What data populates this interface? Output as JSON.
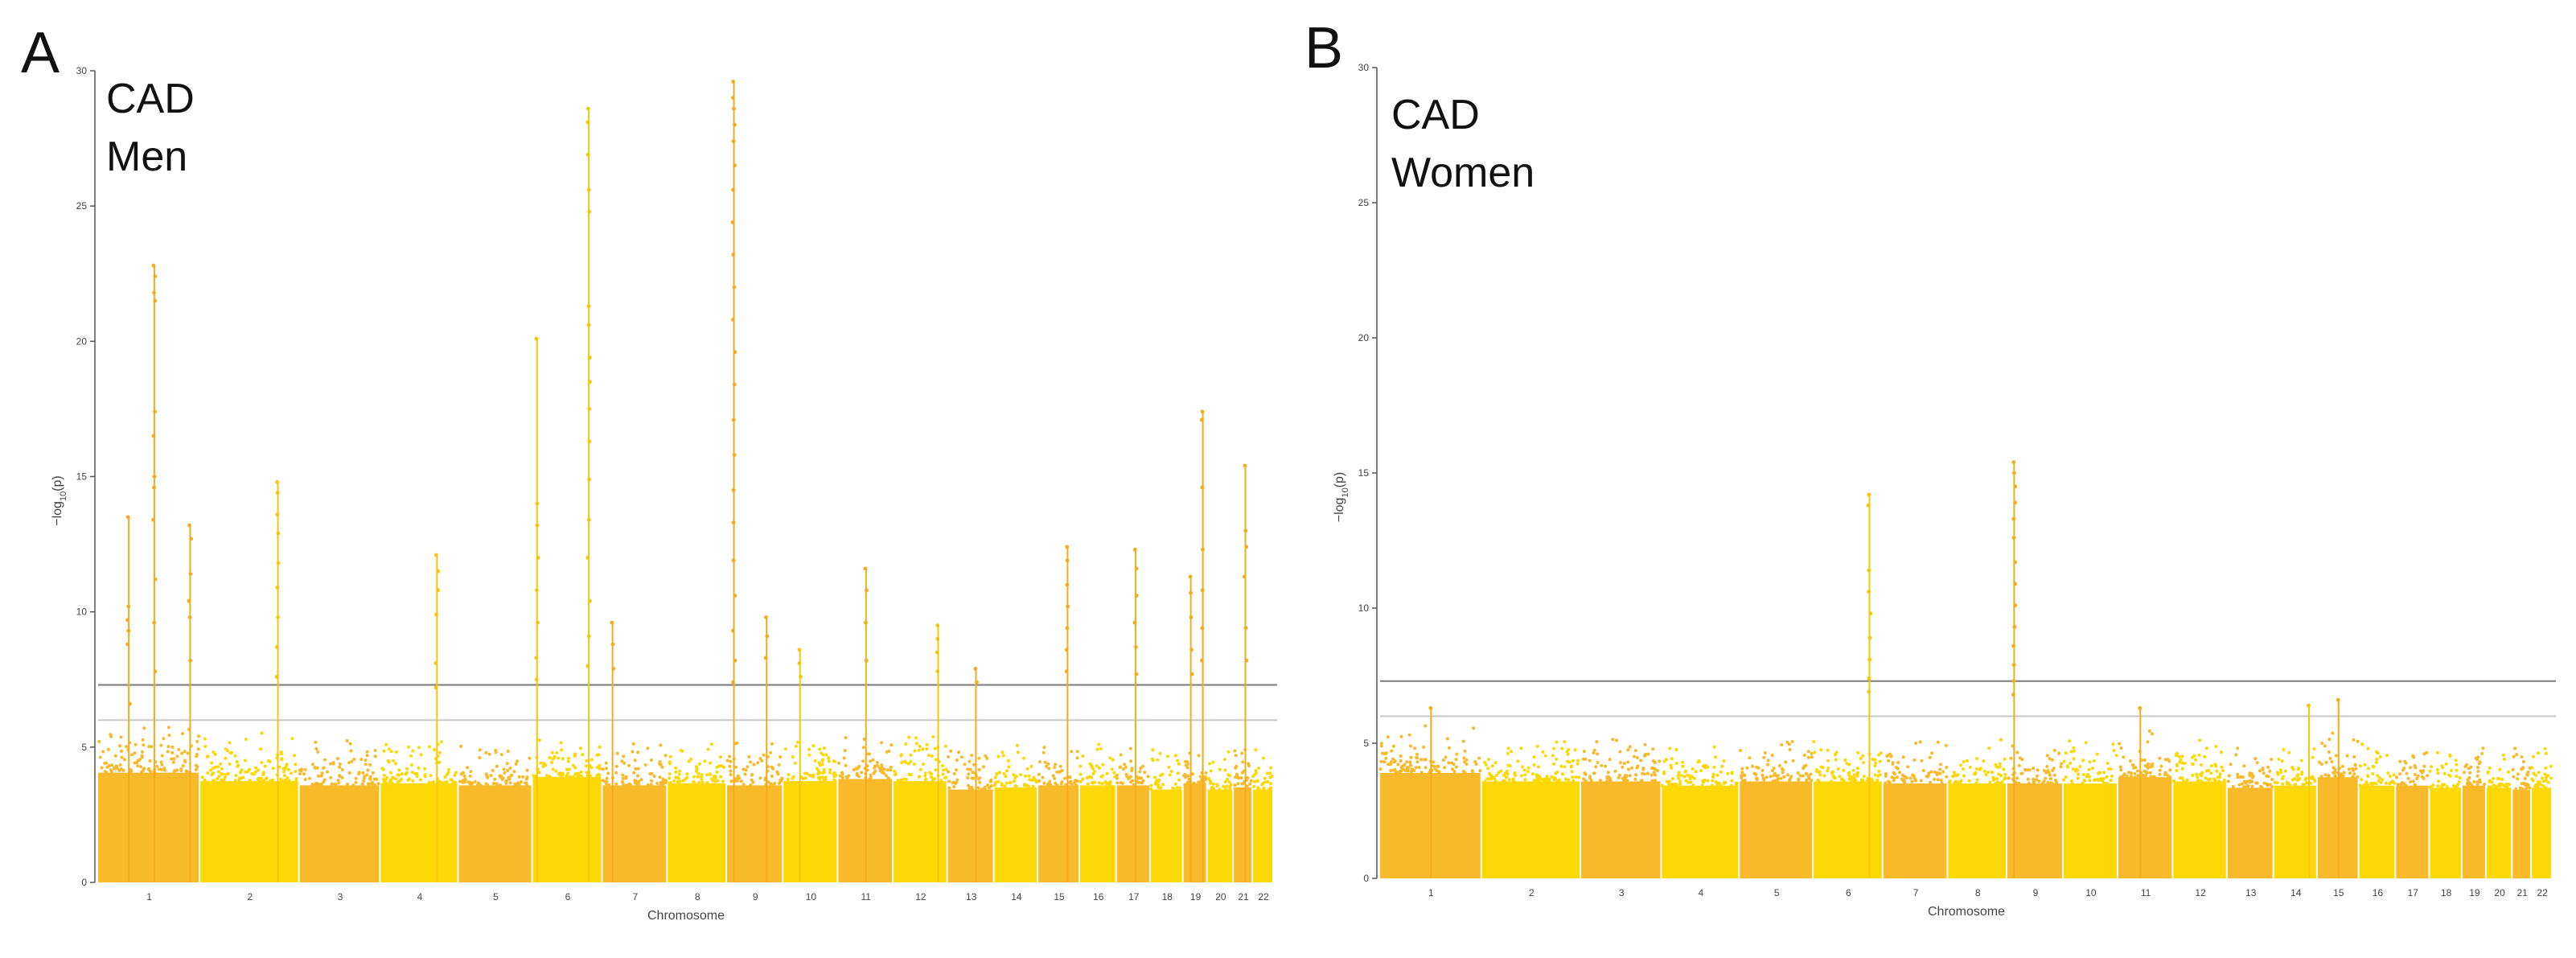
{
  "chart_data": [
    {
      "type": "scatter",
      "panel_label": "A",
      "title_lines": [
        "CAD",
        "Men"
      ],
      "xlabel": "Chromosome",
      "ylabel": "−log",
      "ylabel_sub": "10",
      "ylabel_suffix": "(p)",
      "ylim": [
        0,
        30
      ],
      "yticks": [
        0,
        5,
        10,
        15,
        20,
        25,
        30
      ],
      "thresholds": {
        "genome_wide": 7.3,
        "suggestive": 6
      },
      "chromosomes": [
        {
          "label": "1",
          "width": 2.5,
          "base": 5.2
        },
        {
          "label": "2",
          "width": 2.43,
          "base": 4.8
        },
        {
          "label": "3",
          "width": 1.98,
          "base": 4.6
        },
        {
          "label": "4",
          "width": 1.91,
          "base": 4.7
        },
        {
          "label": "5",
          "width": 1.81,
          "base": 4.6
        },
        {
          "label": "6",
          "width": 1.71,
          "base": 5.0
        },
        {
          "label": "7",
          "width": 1.59,
          "base": 4.6
        },
        {
          "label": "8",
          "width": 1.45,
          "base": 4.7
        },
        {
          "label": "9",
          "width": 1.38,
          "base": 4.6
        },
        {
          "label": "10",
          "width": 1.34,
          "base": 4.8
        },
        {
          "label": "11",
          "width": 1.35,
          "base": 4.9
        },
        {
          "label": "12",
          "width": 1.33,
          "base": 4.8
        },
        {
          "label": "13",
          "width": 1.14,
          "base": 4.4
        },
        {
          "label": "14",
          "width": 1.07,
          "base": 4.5
        },
        {
          "label": "15",
          "width": 1.02,
          "base": 4.6
        },
        {
          "label": "16",
          "width": 0.9,
          "base": 4.6
        },
        {
          "label": "17",
          "width": 0.83,
          "base": 4.6
        },
        {
          "label": "18",
          "width": 0.8,
          "base": 4.4
        },
        {
          "label": "19",
          "width": 0.59,
          "base": 4.7
        },
        {
          "label": "20",
          "width": 0.64,
          "base": 4.4
        },
        {
          "label": "21",
          "width": 0.47,
          "base": 4.5
        },
        {
          "label": "22",
          "width": 0.51,
          "base": 4.4
        }
      ],
      "peaks": [
        {
          "chr": "1",
          "pos": 0.55,
          "values": [
            22.8,
            22.4,
            21.8,
            21.5,
            17.4,
            16.5,
            15.0,
            14.6,
            13.4,
            11.2,
            9.6,
            7.8
          ]
        },
        {
          "chr": "1",
          "pos": 0.3,
          "values": [
            13.5,
            10.2,
            9.7,
            9.3,
            8.8,
            6.6
          ]
        },
        {
          "chr": "1",
          "pos": 0.9,
          "values": [
            13.2,
            12.7,
            11.4,
            10.4,
            9.8,
            8.2
          ]
        },
        {
          "chr": "2",
          "pos": 0.78,
          "values": [
            14.8,
            14.4,
            13.6,
            12.9,
            11.8,
            10.9,
            9.8,
            8.7,
            7.6
          ]
        },
        {
          "chr": "4",
          "pos": 0.72,
          "values": [
            12.1,
            11.5,
            10.8,
            9.9,
            8.1,
            7.2
          ]
        },
        {
          "chr": "6",
          "pos": 0.06,
          "values": [
            20.1,
            14.0,
            13.2,
            12.0,
            10.8,
            9.6,
            8.3,
            7.5
          ]
        },
        {
          "chr": "6",
          "pos": 0.8,
          "values": [
            28.6,
            28.1,
            26.9,
            25.6,
            24.8,
            21.3,
            20.6,
            19.4,
            18.5,
            17.5,
            16.3,
            14.9,
            13.4,
            12.0,
            10.4,
            9.1,
            8.0
          ]
        },
        {
          "chr": "7",
          "pos": 0.15,
          "values": [
            9.6,
            8.8,
            7.9
          ]
        },
        {
          "chr": "9",
          "pos": 0.12,
          "values": [
            29.6,
            29.0,
            28.6,
            28.0,
            27.4,
            26.5,
            25.6,
            24.4,
            23.2,
            22.0,
            20.8,
            19.6,
            18.4,
            17.1,
            15.8,
            14.5,
            13.3,
            11.9,
            10.6,
            9.3,
            8.2,
            7.4
          ]
        },
        {
          "chr": "9",
          "pos": 0.7,
          "values": [
            9.8,
            9.1,
            8.3
          ]
        },
        {
          "chr": "10",
          "pos": 0.3,
          "values": [
            8.6,
            8.1,
            7.6
          ]
        },
        {
          "chr": "11",
          "pos": 0.5,
          "values": [
            11.6,
            10.8,
            9.6,
            8.2
          ]
        },
        {
          "chr": "12",
          "pos": 0.82,
          "values": [
            9.5,
            9.0,
            8.5,
            7.8
          ]
        },
        {
          "chr": "13",
          "pos": 0.6,
          "values": [
            7.9,
            7.4
          ]
        },
        {
          "chr": "15",
          "pos": 0.7,
          "values": [
            12.4,
            11.9,
            11.0,
            10.2,
            9.4,
            8.6,
            7.8
          ]
        },
        {
          "chr": "17",
          "pos": 0.55,
          "values": [
            12.3,
            11.6,
            10.6,
            9.6,
            8.7,
            7.7
          ]
        },
        {
          "chr": "19",
          "pos": 0.3,
          "values": [
            11.3,
            10.7,
            9.8,
            8.6,
            7.7
          ]
        },
        {
          "chr": "19",
          "pos": 0.8,
          "values": [
            17.4,
            17.1,
            14.6,
            12.3,
            10.8,
            9.4,
            8.2
          ]
        },
        {
          "chr": "21",
          "pos": 0.6,
          "values": [
            15.4,
            13.0,
            12.4,
            11.3,
            9.4,
            8.2
          ]
        }
      ]
    },
    {
      "type": "scatter",
      "panel_label": "B",
      "title_lines": [
        "CAD",
        "Women"
      ],
      "xlabel": "Chromosome",
      "ylabel": "−log",
      "ylabel_sub": "10",
      "ylabel_suffix": "(p)",
      "ylim": [
        0,
        30
      ],
      "yticks": [
        0,
        5,
        10,
        15,
        20,
        25,
        30
      ],
      "thresholds": {
        "genome_wide": 7.3,
        "suggestive": 6
      },
      "chromosomes": [
        {
          "label": "1",
          "width": 2.5,
          "base": 5.0
        },
        {
          "label": "2",
          "width": 2.43,
          "base": 4.6
        },
        {
          "label": "3",
          "width": 1.98,
          "base": 4.6
        },
        {
          "label": "4",
          "width": 1.91,
          "base": 4.4
        },
        {
          "label": "5",
          "width": 1.81,
          "base": 4.6
        },
        {
          "label": "6",
          "width": 1.71,
          "base": 4.6
        },
        {
          "label": "7",
          "width": 1.59,
          "base": 4.5
        },
        {
          "label": "8",
          "width": 1.45,
          "base": 4.5
        },
        {
          "label": "9",
          "width": 1.38,
          "base": 4.5
        },
        {
          "label": "10",
          "width": 1.34,
          "base": 4.5
        },
        {
          "label": "11",
          "width": 1.35,
          "base": 4.8
        },
        {
          "label": "12",
          "width": 1.33,
          "base": 4.6
        },
        {
          "label": "13",
          "width": 1.14,
          "base": 4.3
        },
        {
          "label": "14",
          "width": 1.07,
          "base": 4.4
        },
        {
          "label": "15",
          "width": 1.02,
          "base": 4.8
        },
        {
          "label": "16",
          "width": 0.9,
          "base": 4.4
        },
        {
          "label": "17",
          "width": 0.83,
          "base": 4.4
        },
        {
          "label": "18",
          "width": 0.8,
          "base": 4.3
        },
        {
          "label": "19",
          "width": 0.59,
          "base": 4.4
        },
        {
          "label": "20",
          "width": 0.64,
          "base": 4.3
        },
        {
          "label": "21",
          "width": 0.47,
          "base": 4.2
        },
        {
          "label": "22",
          "width": 0.51,
          "base": 4.3
        }
      ],
      "peaks": [
        {
          "chr": "6",
          "pos": 0.8,
          "values": [
            14.2,
            13.8,
            11.4,
            10.6,
            9.8,
            8.9,
            8.1,
            7.4,
            6.9
          ]
        },
        {
          "chr": "9",
          "pos": 0.12,
          "values": [
            15.4,
            15.0,
            14.5,
            13.9,
            13.3,
            12.6,
            11.7,
            10.9,
            10.1,
            9.3,
            8.6,
            7.9,
            7.3,
            6.8
          ]
        },
        {
          "chr": "1",
          "pos": 0.5,
          "values": [
            6.3
          ]
        },
        {
          "chr": "11",
          "pos": 0.4,
          "values": [
            6.3
          ]
        },
        {
          "chr": "14",
          "pos": 0.8,
          "values": [
            6.4
          ]
        },
        {
          "chr": "15",
          "pos": 0.5,
          "values": [
            6.6
          ]
        }
      ]
    }
  ]
}
